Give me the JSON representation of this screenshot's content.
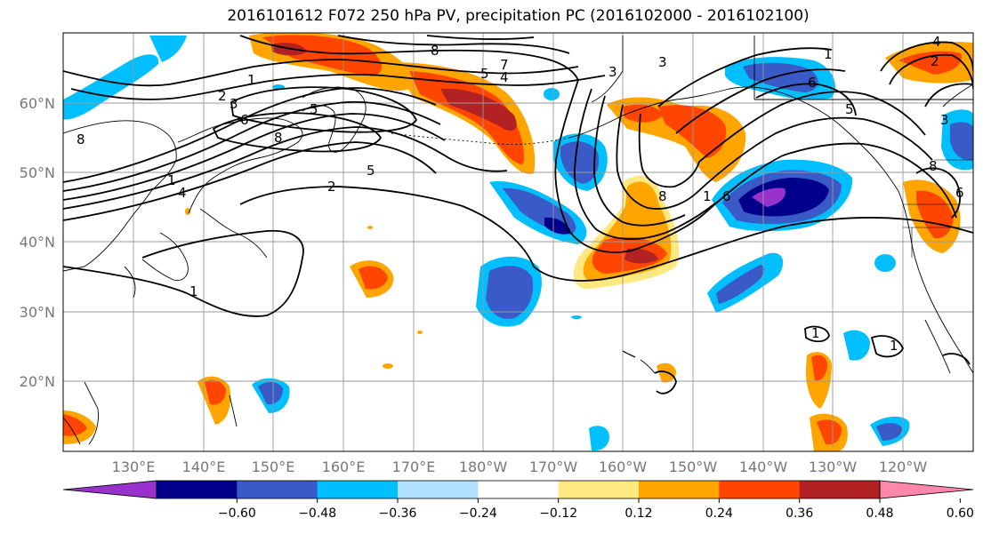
{
  "title": "2016101612 F072 250 hPa PV, precipitation PC (2016102000 - 2016102100)",
  "lat_labels": [
    "60°N",
    "50°N",
    "40°N",
    "30°N",
    "20°N"
  ],
  "lon_labels": [
    "130°E",
    "140°E",
    "150°E",
    "160°E",
    "170°E",
    "180°W",
    "170°W",
    "160°W",
    "150°W",
    "140°W",
    "130°W",
    "120°W"
  ],
  "colorbar": {
    "colors": [
      "#9932CC",
      "#00008B",
      "#3A5AC8",
      "#00BFFF",
      "#B0E0FF",
      "#FFFFFF",
      "#FFE880",
      "#FFA500",
      "#FF4500",
      "#B22222",
      "#FF88AA"
    ],
    "ticks": [
      "−0.60",
      "−0.48",
      "−0.36",
      "−0.24",
      "−0.12",
      "0.12",
      "0.24",
      "0.36",
      "0.48",
      "0.60"
    ]
  },
  "contour_labels": [
    "1",
    "2",
    "3",
    "4",
    "5",
    "6",
    "8",
    "8",
    "7",
    "5",
    "4",
    "3",
    "8",
    "5",
    "3",
    "2",
    "1",
    "6",
    "5",
    "8",
    "1",
    "6",
    "1",
    "1",
    "4",
    "2",
    "3",
    "6",
    "8",
    "1",
    "1"
  ]
}
